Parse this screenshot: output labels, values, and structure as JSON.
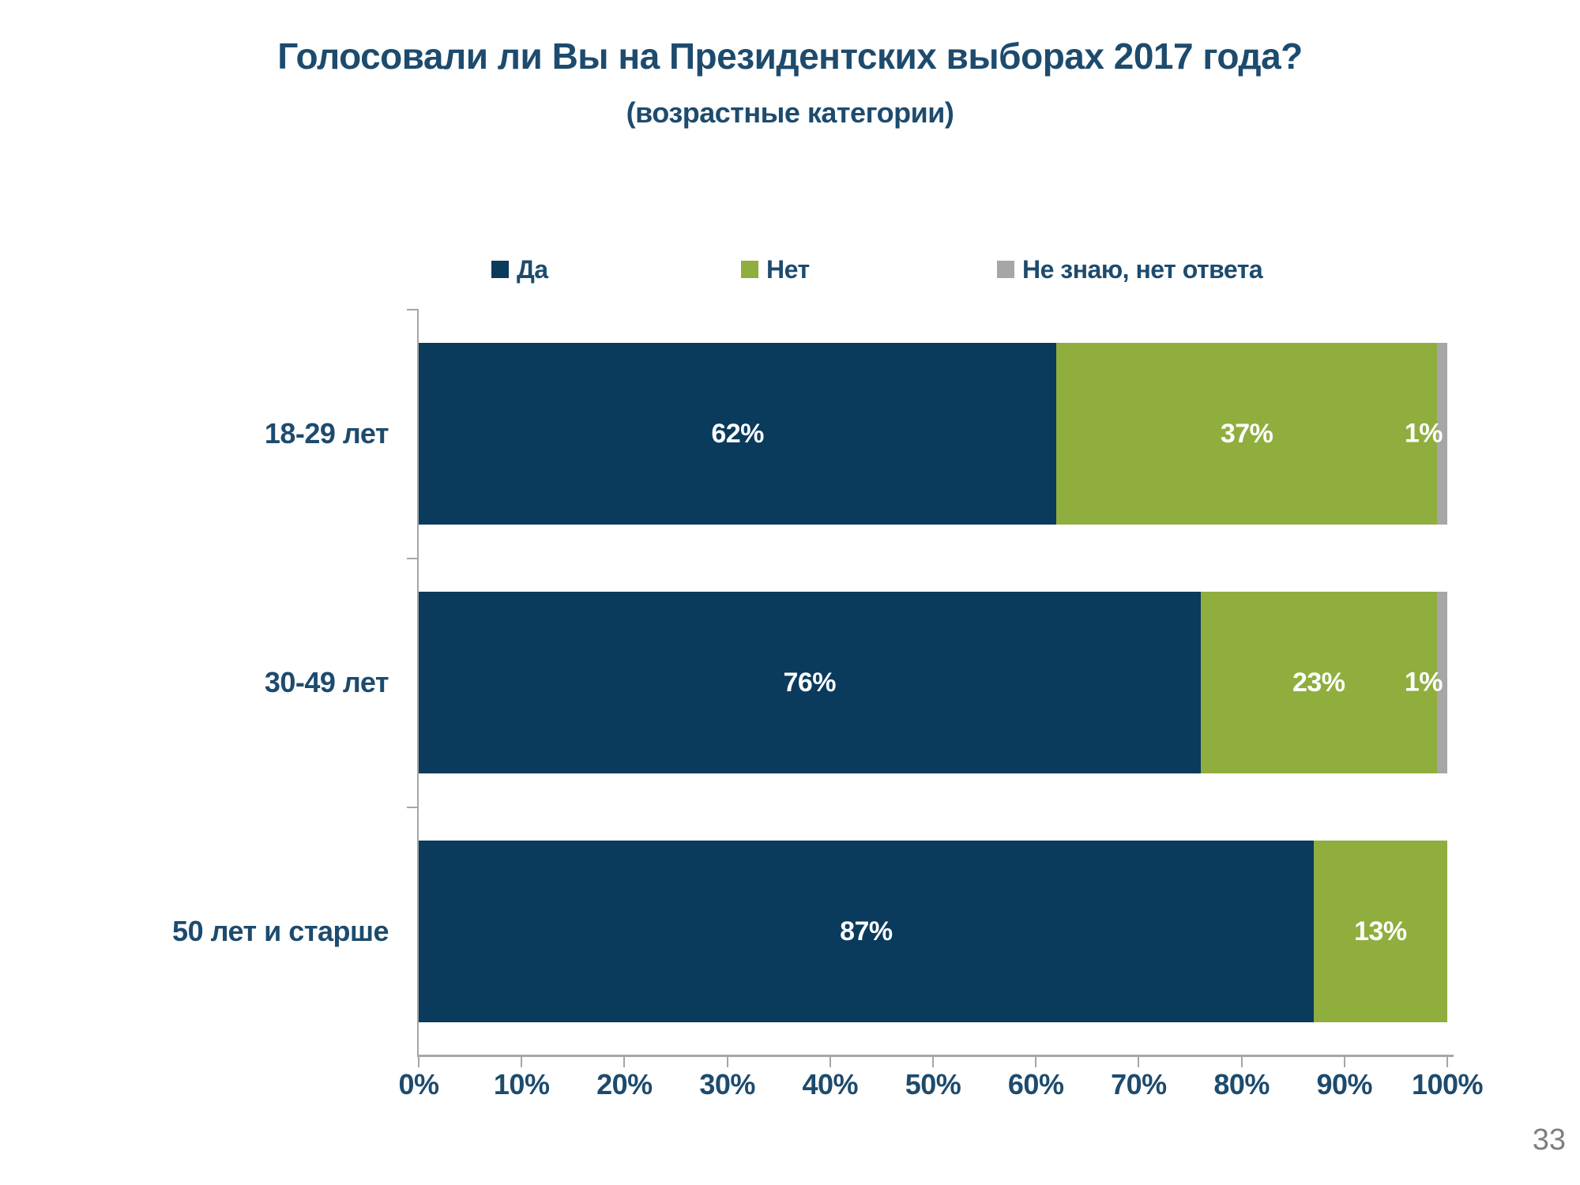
{
  "page": {
    "number": "33"
  },
  "chart_data": {
    "type": "bar",
    "orientation": "horizontal-stacked",
    "title": "Голосовали ли Вы на Президентских выборах 2017 года?",
    "subtitle": "(возрастные категории)",
    "categories": [
      "18-29 лет",
      "30-49 лет",
      "50 лет и старше"
    ],
    "series": [
      {
        "name": "Да",
        "color": "#0a3a5c",
        "values": [
          62,
          76,
          87
        ]
      },
      {
        "name": "Нет",
        "color": "#8fae3e",
        "values": [
          37,
          23,
          13
        ]
      },
      {
        "name": "Не знаю, нет ответа",
        "color": "#a6a6a6",
        "values": [
          1,
          1,
          0
        ]
      }
    ],
    "data_labels": [
      [
        "62%",
        "37%",
        "1%"
      ],
      [
        "76%",
        "23%",
        "1%"
      ],
      [
        "87%",
        "13%",
        ""
      ]
    ],
    "x_ticks": [
      "0%",
      "10%",
      "20%",
      "30%",
      "40%",
      "50%",
      "60%",
      "70%",
      "80%",
      "90%",
      "100%"
    ],
    "xlim": [
      0,
      100
    ],
    "legend_position": "top",
    "grid": false,
    "colors": {
      "text_navy": "#1d4b6e",
      "axis_gray": "#a6a6a6",
      "data_label_white": "#ffffff",
      "page_number_gray": "#7f7f7f"
    }
  }
}
